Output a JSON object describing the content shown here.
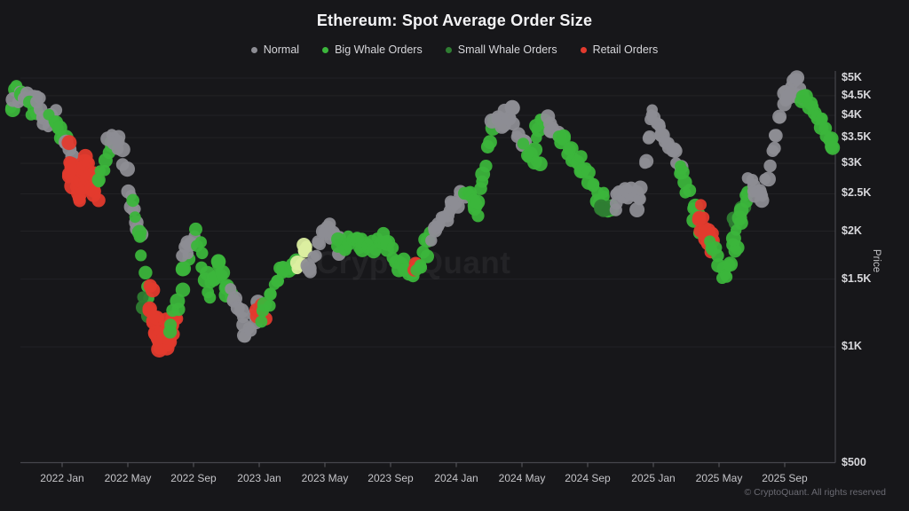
{
  "watermark": {
    "text": "CryptoQuant"
  },
  "footer": {
    "copyright": "© CryptoQuant. All rights reserved"
  },
  "chart_data": {
    "type": "scatter",
    "title": "Ethereum: Spot Average Order Size",
    "xlabel": "",
    "ylabel": "Price",
    "y_scale": "log",
    "y_range_usd": [
      500,
      5000
    ],
    "x_range": [
      "2021 Oct",
      "2025 Nov"
    ],
    "grid": "horizontal-faint",
    "legend_position": "top-center",
    "legend": [
      {
        "key": "normal",
        "label": "Normal"
      },
      {
        "key": "big_whale",
        "label": "Big Whale Orders"
      },
      {
        "key": "small_whale",
        "label": "Small Whale Orders"
      },
      {
        "key": "retail",
        "label": "Retail Orders"
      }
    ],
    "colors": {
      "normal": "#8d8d94",
      "big_whale": "#3cb63c",
      "small_whale": "#2f7d32",
      "retail": "#e23a2e",
      "highlight": "#dcefa0"
    },
    "y_ticks": [
      [
        5000,
        "$5K"
      ],
      [
        4500,
        "$4.5K"
      ],
      [
        4000,
        "$4K"
      ],
      [
        3500,
        "$3.5K"
      ],
      [
        3000,
        "$3K"
      ],
      [
        2500,
        "$2.5K"
      ],
      [
        2000,
        "$2K"
      ],
      [
        1500,
        "$1.5K"
      ],
      [
        1000,
        "$1K"
      ],
      [
        500,
        "$500"
      ]
    ],
    "x_ticks": [
      [
        0,
        "2022 Jan"
      ],
      [
        4,
        "2022 May"
      ],
      [
        8,
        "2022 Sep"
      ],
      [
        12,
        "2023 Jan"
      ],
      [
        16,
        "2023 May"
      ],
      [
        20,
        "2023 Sep"
      ],
      [
        24,
        "2024 Jan"
      ],
      [
        28,
        "2024 May"
      ],
      [
        32,
        "2024 Sep"
      ],
      [
        36,
        "2025 Jan"
      ],
      [
        40,
        "2025 May"
      ],
      [
        44,
        "2025 Sep"
      ]
    ],
    "t_unit": "months since 2022-01",
    "segments": [
      [
        -3.1,
        4350,
        -2.5,
        4800,
        "b",
        0.06
      ],
      [
        -2.9,
        4500,
        -2.2,
        4250,
        "n",
        0.05
      ],
      [
        -2.5,
        4800,
        -1.9,
        4200,
        "b",
        0.06
      ],
      [
        -2.2,
        4400,
        -1.5,
        4450,
        "n",
        0.04
      ],
      [
        -1.9,
        4200,
        -1.6,
        4050,
        "b",
        0.04
      ],
      [
        -1.5,
        4450,
        -0.9,
        3850,
        "n",
        0.045
      ],
      [
        -0.9,
        3850,
        -0.5,
        4050,
        "n",
        0.035
      ],
      [
        -0.7,
        4050,
        0.2,
        3400,
        "b",
        0.05
      ],
      [
        0.2,
        3400,
        0.7,
        3050,
        "n",
        0.04
      ],
      [
        0.4,
        3150,
        1.0,
        2480,
        "r",
        0.09
      ],
      [
        1.0,
        2480,
        1.5,
        2900,
        "r",
        0.1
      ],
      [
        1.5,
        2900,
        2.1,
        2600,
        "r",
        0.08
      ],
      [
        2.2,
        2600,
        3.0,
        3500,
        "b",
        0.05
      ],
      [
        2.9,
        3600,
        3.5,
        3400,
        "n",
        0.04
      ],
      [
        3.5,
        3400,
        4.2,
        2350,
        "n",
        0.05
      ],
      [
        4.2,
        2350,
        4.7,
        1950,
        "n",
        0.05
      ],
      [
        4.4,
        2300,
        5.3,
        1350,
        "b",
        0.06
      ],
      [
        4.9,
        1300,
        5.2,
        1220,
        "s",
        0.04
      ],
      [
        5.3,
        1350,
        5.9,
        1080,
        "r",
        0.09
      ],
      [
        5.9,
        1080,
        6.5,
        1040,
        "r",
        0.12
      ],
      [
        6.5,
        1040,
        6.9,
        1200,
        "r",
        0.08
      ],
      [
        6.6,
        1150,
        7.6,
        1650,
        "b",
        0.06
      ],
      [
        7.4,
        1700,
        8.1,
        1950,
        "n",
        0.05
      ],
      [
        8.1,
        1950,
        9.0,
        1400,
        "b",
        0.06
      ],
      [
        9.0,
        1400,
        9.6,
        1600,
        "b",
        0.05
      ],
      [
        9.6,
        1600,
        10.4,
        1300,
        "b",
        0.05
      ],
      [
        10.3,
        1350,
        11.2,
        1080,
        "n",
        0.05
      ],
      [
        11.2,
        1080,
        11.9,
        1250,
        "n",
        0.05
      ],
      [
        11.8,
        1300,
        12.4,
        1200,
        "r",
        0.06
      ],
      [
        12.2,
        1200,
        13.3,
        1600,
        "b",
        0.05
      ],
      [
        13.3,
        1600,
        14.2,
        1650,
        "b",
        0.04
      ],
      [
        14.3,
        1650,
        15.0,
        1850,
        "h",
        0.045
      ],
      [
        14.9,
        1600,
        16.2,
        2050,
        "n",
        0.05
      ],
      [
        16.2,
        2050,
        16.9,
        1800,
        "n",
        0.05
      ],
      [
        16.8,
        1850,
        18.6,
        1830,
        "b",
        0.055
      ],
      [
        18.6,
        1830,
        19.6,
        1880,
        "b",
        0.04
      ],
      [
        19.6,
        1880,
        20.6,
        1650,
        "b",
        0.05
      ],
      [
        20.6,
        1650,
        21.6,
        1570,
        "b",
        0.045
      ],
      [
        21.3,
        1620,
        21.6,
        1620,
        "r",
        0.03
      ],
      [
        21.6,
        1570,
        22.5,
        1950,
        "b",
        0.04
      ],
      [
        22.5,
        1950,
        23.6,
        2300,
        "n",
        0.045
      ],
      [
        23.6,
        2300,
        24.5,
        2550,
        "n",
        0.04
      ],
      [
        24.5,
        2500,
        25.2,
        2300,
        "b",
        0.045
      ],
      [
        25.2,
        2300,
        26.3,
        3750,
        "b",
        0.05
      ],
      [
        26.3,
        3750,
        27.3,
        4050,
        "n",
        0.04
      ],
      [
        27.3,
        4050,
        28.2,
        3300,
        "n",
        0.05
      ],
      [
        28.2,
        3300,
        29.0,
        3050,
        "b",
        0.05
      ],
      [
        28.8,
        3600,
        29.5,
        3950,
        "b",
        0.04
      ],
      [
        29.5,
        3850,
        30.2,
        3500,
        "n",
        0.04
      ],
      [
        30.2,
        3500,
        31.5,
        3000,
        "b",
        0.05
      ],
      [
        31.5,
        3000,
        32.6,
        2450,
        "b",
        0.05
      ],
      [
        32.6,
        2450,
        33.6,
        2350,
        "b",
        0.06
      ],
      [
        32.7,
        2350,
        33.3,
        2250,
        "s",
        0.04
      ],
      [
        33.6,
        2350,
        34.5,
        2550,
        "n",
        0.055
      ],
      [
        34.5,
        2550,
        35.1,
        2350,
        "n",
        0.05
      ],
      [
        35.1,
        2350,
        35.9,
        3950,
        "n",
        0.05
      ],
      [
        35.9,
        3950,
        36.5,
        3600,
        "n",
        0.045
      ],
      [
        36.5,
        3600,
        37.6,
        3000,
        "n",
        0.05
      ],
      [
        37.6,
        3000,
        38.8,
        2050,
        "b",
        0.05
      ],
      [
        38.8,
        2200,
        39.6,
        1850,
        "r",
        0.07
      ],
      [
        39.4,
        1900,
        40.3,
        1520,
        "b",
        0.05
      ],
      [
        40.3,
        1520,
        41.0,
        1900,
        "b",
        0.05
      ],
      [
        40.9,
        2100,
        41.5,
        2350,
        "s",
        0.045
      ],
      [
        41.0,
        1900,
        41.8,
        2600,
        "b",
        0.05
      ],
      [
        41.8,
        2600,
        42.6,
        2450,
        "n",
        0.06
      ],
      [
        42.6,
        2450,
        44.0,
        4400,
        "n",
        0.05
      ],
      [
        44.0,
        4400,
        44.6,
        4900,
        "n",
        0.04
      ],
      [
        44.6,
        4900,
        45.2,
        4400,
        "n",
        0.045
      ],
      [
        45.1,
        4550,
        46.2,
        3900,
        "b",
        0.05
      ],
      [
        46.2,
        3900,
        47.1,
        3200,
        "b",
        0.05
      ]
    ]
  }
}
